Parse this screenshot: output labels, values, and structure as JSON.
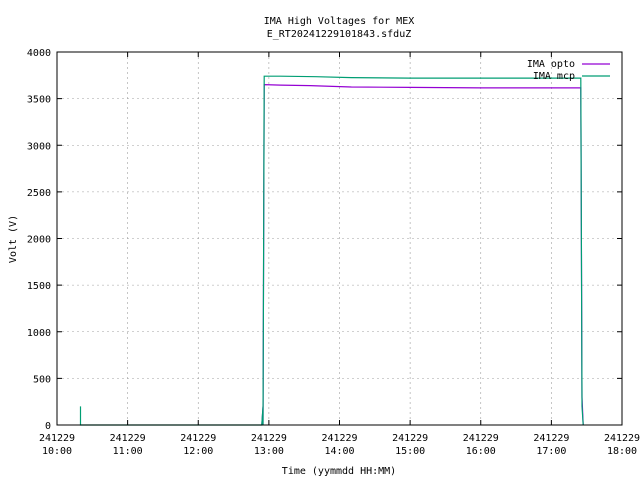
{
  "chart_data": {
    "type": "line",
    "title": "IMA High Voltages for MEX",
    "subtitle": "E_RT20241229101843.sfduZ",
    "xlabel": "Time (yymmdd HH:MM)",
    "ylabel": "Volt (V)",
    "xlim": [
      "241229 10:00",
      "241229 18:00"
    ],
    "ylim": [
      0,
      4000
    ],
    "grid": true,
    "legend_position": "top-right",
    "x_ticks": [
      {
        "date": "241229",
        "time": "10:00"
      },
      {
        "date": "241229",
        "time": "11:00"
      },
      {
        "date": "241229",
        "time": "12:00"
      },
      {
        "date": "241229",
        "time": "13:00"
      },
      {
        "date": "241229",
        "time": "14:00"
      },
      {
        "date": "241229",
        "time": "15:00"
      },
      {
        "date": "241229",
        "time": "16:00"
      },
      {
        "date": "241229",
        "time": "17:00"
      },
      {
        "date": "241229",
        "time": "18:00"
      }
    ],
    "y_ticks": [
      "0",
      "500",
      "1000",
      "1500",
      "2000",
      "2500",
      "3000",
      "3500",
      "4000"
    ],
    "series": [
      {
        "name": "IMA opto",
        "color": "#9400d3",
        "points": [
          [
            "241229 12:54",
            0
          ],
          [
            "241229 12:55",
            190
          ],
          [
            "241229 12:55",
            0
          ],
          [
            "241229 12:56",
            3650
          ],
          [
            "241229 13:10",
            3645
          ],
          [
            "241229 13:35",
            3640
          ],
          [
            "241229 14:10",
            3625
          ],
          [
            "241229 15:00",
            3620
          ],
          [
            "241229 16:00",
            3615
          ],
          [
            "241229 17:00",
            3615
          ],
          [
            "241229 17:25",
            3615
          ],
          [
            "241229 17:26",
            300
          ],
          [
            "241229 17:27",
            0
          ]
        ]
      },
      {
        "name": "IMA mcp",
        "color": "#009e73",
        "points": [
          [
            "241229 10:20",
            0
          ],
          [
            "241229 10:20",
            200
          ],
          [
            "241229 10:20",
            0
          ],
          [
            "241229 12:54",
            0
          ],
          [
            "241229 12:55",
            200
          ],
          [
            "241229 12:55",
            0
          ],
          [
            "241229 12:56",
            3740
          ],
          [
            "241229 13:10",
            3740
          ],
          [
            "241229 13:40",
            3735
          ],
          [
            "241229 14:10",
            3725
          ],
          [
            "241229 15:00",
            3720
          ],
          [
            "241229 16:00",
            3720
          ],
          [
            "241229 17:00",
            3720
          ],
          [
            "241229 17:25",
            3720
          ],
          [
            "241229 17:26",
            200
          ],
          [
            "241229 17:27",
            0
          ]
        ]
      }
    ]
  }
}
